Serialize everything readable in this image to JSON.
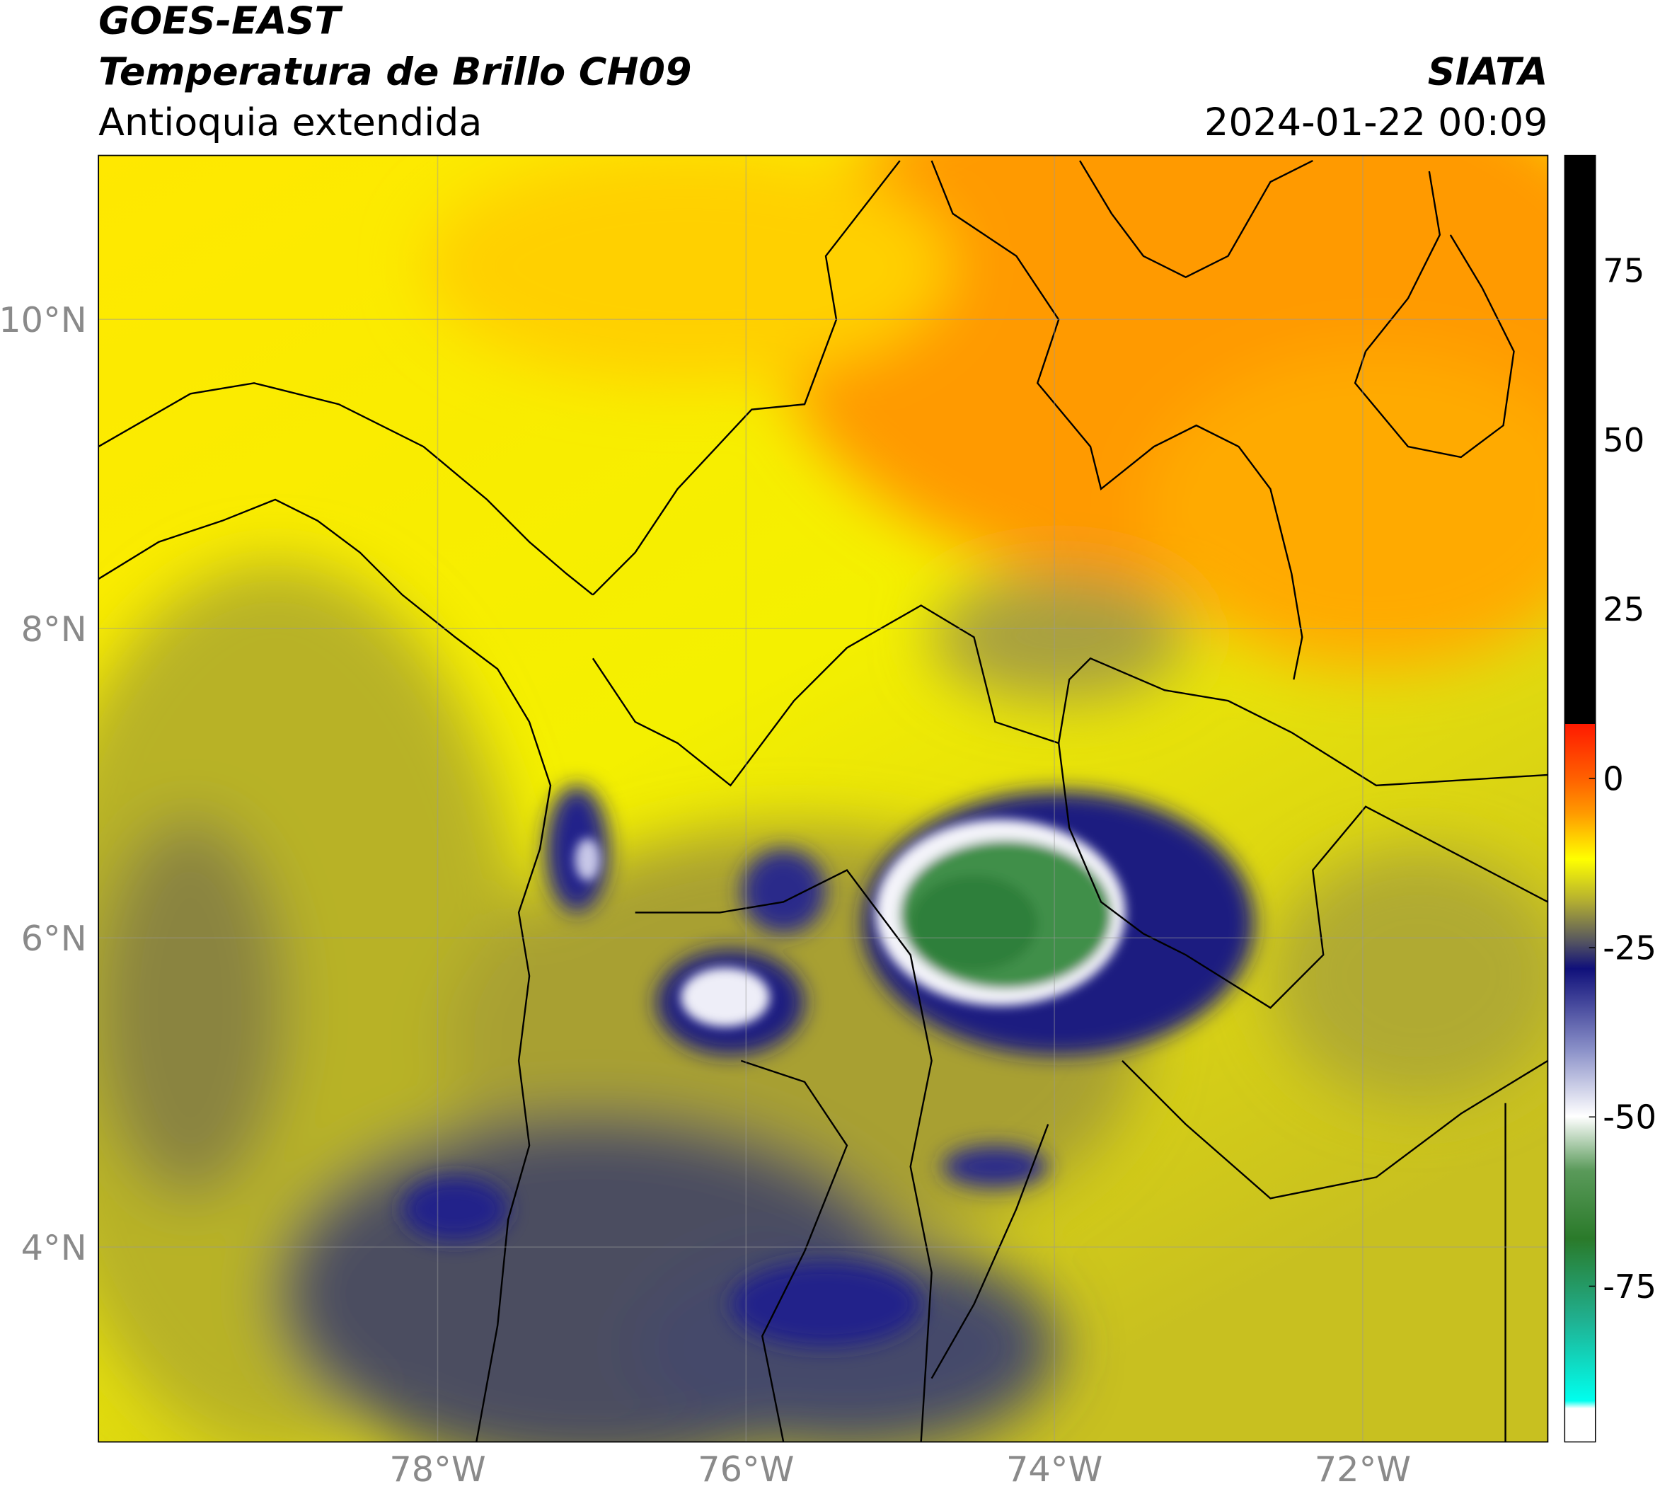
{
  "header": {
    "title": "GOES-EAST",
    "subtitle": "Temperatura de Brillo CH09",
    "region": "Antioquia extendida",
    "source": "SIATA",
    "timestamp": "2024-01-22 00:09"
  },
  "map": {
    "xlim": [
      -80.2,
      -70.8
    ],
    "ylim": [
      2.74,
      11.06
    ],
    "xticks": [
      {
        "value": -78,
        "label": "78°W"
      },
      {
        "value": -76,
        "label": "76°W"
      },
      {
        "value": -74,
        "label": "74°W"
      },
      {
        "value": -72,
        "label": "72°W"
      }
    ],
    "yticks": [
      {
        "value": 4,
        "label": "4°N"
      },
      {
        "value": 6,
        "label": "6°N"
      },
      {
        "value": 8,
        "label": "8°N"
      },
      {
        "value": 10,
        "label": "10°N"
      }
    ],
    "grid": true
  },
  "colorbar": {
    "lim": [
      -98,
      92
    ],
    "ticks": [
      -75,
      -50,
      -25,
      0,
      25,
      50,
      75
    ]
  }
}
